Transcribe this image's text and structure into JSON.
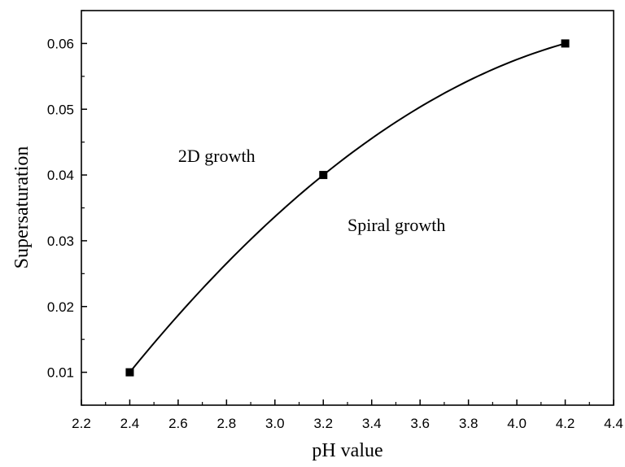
{
  "chart_data": {
    "type": "line",
    "title": "",
    "xlabel": "pH value",
    "ylabel": "Supersaturation",
    "xlim": [
      2.2,
      4.4
    ],
    "ylim": [
      0.005,
      0.065
    ],
    "xticks": [
      2.2,
      2.4,
      2.6,
      2.8,
      3.0,
      3.2,
      3.4,
      3.6,
      3.8,
      4.0,
      4.2,
      4.4
    ],
    "xtick_labels": [
      "2.2",
      "2.4",
      "2.6",
      "2.8",
      "3.0",
      "3.2",
      "3.4",
      "3.6",
      "3.8",
      "4.0",
      "4.2",
      "4.4"
    ],
    "yticks": [
      0.01,
      0.02,
      0.03,
      0.04,
      0.05,
      0.06
    ],
    "ytick_labels": [
      "0.01",
      "0.02",
      "0.03",
      "0.04",
      "0.05",
      "0.06"
    ],
    "grid": false,
    "series": [
      {
        "x": [
          2.4,
          3.2,
          4.2
        ],
        "y": [
          0.01,
          0.04,
          0.06
        ],
        "marker": "square",
        "color": "#000000"
      }
    ],
    "annotations": [
      {
        "text": "2D growth",
        "x": 2.6,
        "y": 0.042
      },
      {
        "text": "Spiral growth",
        "x": 3.3,
        "y": 0.0315
      }
    ]
  }
}
